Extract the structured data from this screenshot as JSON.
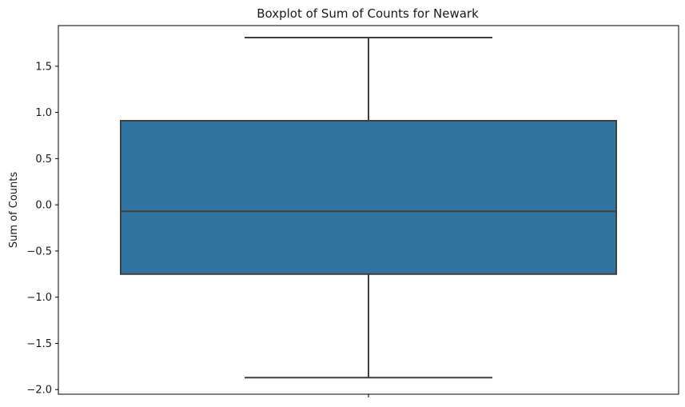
{
  "chart_data": {
    "type": "box",
    "title": "Boxplot of Sum of Counts for Newark",
    "xlabel": "",
    "ylabel": "Sum of Counts",
    "ylim": [
      -2.05,
      1.94
    ],
    "yticks": [
      -2.0,
      -1.5,
      -1.0,
      -0.5,
      0.0,
      0.5,
      1.0,
      1.5
    ],
    "ytick_labels": [
      "−2.0",
      "−1.5",
      "−1.0",
      "−0.5",
      "0.0",
      "0.5",
      "1.0",
      "1.5"
    ],
    "grid": false,
    "box": {
      "whisker_low": -1.87,
      "q1": -0.75,
      "median": -0.07,
      "q3": 0.91,
      "whisker_high": 1.81
    },
    "colors": {
      "box_fill": "#3274a1",
      "box_edge": "#3f3f3f",
      "axis": "#000000"
    }
  }
}
